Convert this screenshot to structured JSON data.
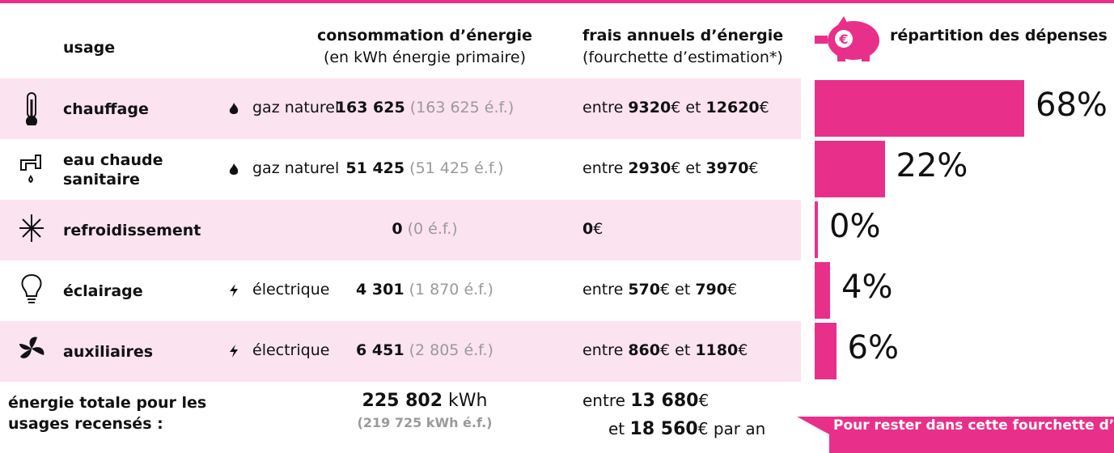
{
  "header": {
    "usage": "usage",
    "consumption": "consommation d’énergie",
    "consumption_unit": "(en kWh énergie primaire)",
    "cost": "frais annuels d’énergie",
    "cost_note": "(fourchette d’estimation*)",
    "share": "répartition des dépenses"
  },
  "words": {
    "between": "entre",
    "and": "et",
    "euro": "€"
  },
  "rows": [
    {
      "usage": "chauffage",
      "energy": "gaz naturel",
      "primary": "163 625",
      "final": "(163 625 é.f.)",
      "cost_low": "9320",
      "cost_high": "12620",
      "share": 68,
      "share_label": "68%"
    },
    {
      "usage": "eau chaude sanitaire",
      "energy": "gaz naturel",
      "primary": "51 425",
      "final": "(51 425 é.f.)",
      "cost_low": "2930",
      "cost_high": "3970",
      "share": 22,
      "share_label": "22%"
    },
    {
      "usage": "refroidissement",
      "primary": "0",
      "final": "(0 é.f.)",
      "cost_low": "0",
      "share": 0,
      "share_label": "0%"
    },
    {
      "usage": "éclairage",
      "energy": "électrique",
      "primary": "4 301",
      "final": "(1 870 é.f.)",
      "cost_low": "570",
      "cost_high": "790",
      "share": 4,
      "share_label": "4%"
    },
    {
      "usage": "auxiliaires",
      "energy": "électrique",
      "primary": "6 451",
      "final": "(2 805 é.f.)",
      "cost_low": "860",
      "cost_high": "1180",
      "share": 6,
      "share_label": "6%"
    }
  ],
  "total": {
    "label": "énergie totale pour les usages recensés :",
    "primary": "225 802",
    "unit": "kWh",
    "final": "(219 725 kWh é.f.)",
    "cost_low": "13 680",
    "cost_high": "18 560",
    "per_year": "par an"
  },
  "callout": "Pour rester dans cette fourchette d’estimation, voir les recommandat"
}
